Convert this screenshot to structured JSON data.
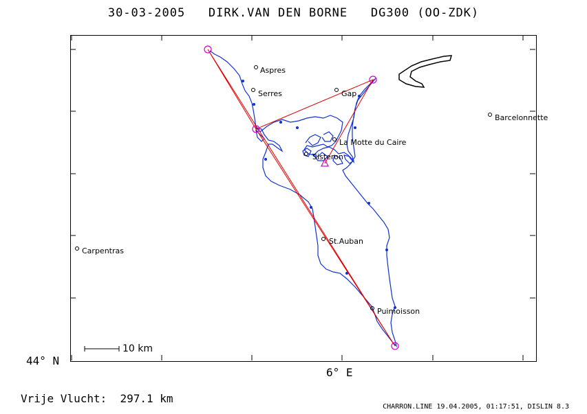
{
  "header": {
    "date": "30-03-2005",
    "pilot": "DIRK.VAN DEN BORNE",
    "aircraft": "DG300 (OO-ZDK)"
  },
  "axes": {
    "lat_label": "44° N",
    "lon_label": "6° E"
  },
  "scale": {
    "label": "10 km"
  },
  "towns": [
    {
      "name": "Aspres"
    },
    {
      "name": "Serres"
    },
    {
      "name": "Gap"
    },
    {
      "name": "Barcelonnette"
    },
    {
      "name": "La Motte du Caire"
    },
    {
      "name": "Sisteron"
    },
    {
      "name": "St.Auban"
    },
    {
      "name": "Carpentras"
    },
    {
      "name": "Puimoisson"
    }
  ],
  "footer": {
    "distance_label": "Vrije Vlucht:",
    "distance_value": "297.1 km",
    "software": "CHARRON.LINE 19.04.2005, 01:17:51, DISLIN 8.3"
  },
  "colors": {
    "track": "#1030d0",
    "task": "#e00000",
    "turnpoint": "#d000d0",
    "frame": "#000000"
  }
}
